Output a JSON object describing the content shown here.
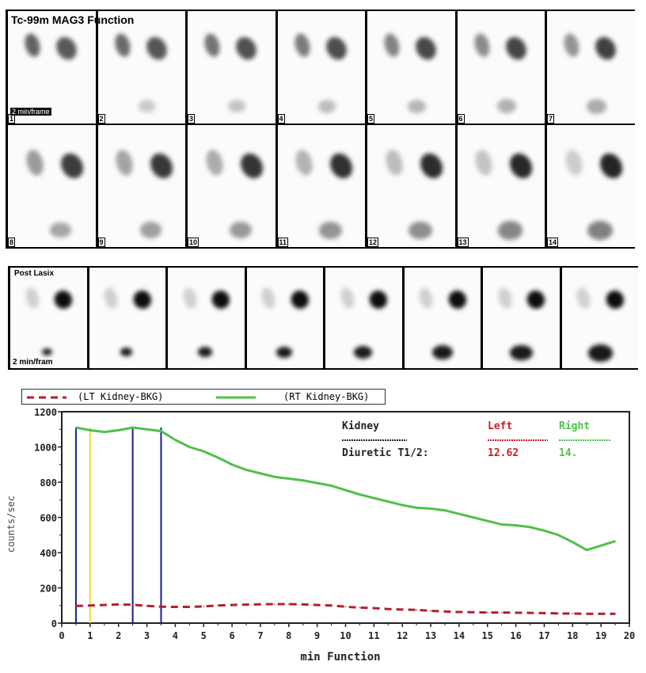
{
  "header": {
    "title": "Tc-99m MAG3 Function",
    "frame_rate": "2 min/frame"
  },
  "frames_row1": [
    "1",
    "2",
    "3",
    "4",
    "5",
    "6",
    "7"
  ],
  "frames_row2": [
    "8",
    "9",
    "10",
    "11",
    "12",
    "13",
    "14"
  ],
  "post_lasix": {
    "label": "Post Lasix",
    "frame_rate": "2 min/fram",
    "count": 8
  },
  "chart_data": {
    "type": "line",
    "xlabel": "min Function",
    "ylabel": "counts/sec",
    "xlim": [
      0,
      20
    ],
    "ylim": [
      0,
      1200
    ],
    "xticks": [
      "0",
      "1",
      "2",
      "3",
      "4",
      "5",
      "6",
      "7",
      "8",
      "9",
      "10",
      "11",
      "12",
      "13",
      "14",
      "15",
      "16",
      "17",
      "18",
      "19",
      "20"
    ],
    "yticks": [
      "0",
      "200",
      "400",
      "600",
      "800",
      "1000",
      "1200"
    ],
    "legend": {
      "placement": "top",
      "entries": [
        "(LT Kidney-BKG)",
        "(RT Kidney-BKG)"
      ]
    },
    "series": [
      {
        "name": "(LT Kidney-BKG)",
        "color": "#b22030",
        "style": "dashed",
        "x": [
          0.5,
          1,
          1.5,
          2,
          2.5,
          3,
          3.5,
          4,
          4.5,
          5,
          5.5,
          6,
          6.5,
          7,
          7.5,
          8,
          8.5,
          9,
          9.5,
          10,
          10.5,
          11,
          11.5,
          12,
          12.5,
          13,
          13.5,
          14,
          14.5,
          15,
          15.5,
          16,
          16.5,
          17,
          17.5,
          18,
          18.5,
          19,
          19.5
        ],
        "y": [
          97,
          100,
          103,
          106,
          104,
          98,
          93,
          92,
          92,
          95,
          100,
          103,
          105,
          107,
          108,
          108,
          106,
          103,
          100,
          93,
          88,
          85,
          80,
          77,
          75,
          70,
          66,
          63,
          62,
          60,
          60,
          59,
          58,
          57,
          55,
          54,
          53,
          53,
          53
        ]
      },
      {
        "name": "(RT Kidney-BKG)",
        "color": "#4fc04a",
        "style": "solid",
        "x": [
          0.5,
          1,
          1.5,
          2,
          2.5,
          3,
          3.5,
          4,
          4.5,
          5,
          5.5,
          6,
          6.5,
          7,
          7.5,
          8,
          8.5,
          9,
          9.5,
          10,
          10.5,
          11,
          11.5,
          12,
          12.5,
          13,
          13.5,
          14,
          14.5,
          15,
          15.5,
          16,
          16.5,
          17,
          17.5,
          18,
          18.5,
          19,
          19.5
        ],
        "y": [
          1110,
          1095,
          1085,
          1095,
          1110,
          1100,
          1090,
          1040,
          1000,
          975,
          940,
          900,
          870,
          850,
          830,
          820,
          810,
          795,
          780,
          755,
          730,
          710,
          690,
          670,
          655,
          650,
          640,
          620,
          600,
          580,
          560,
          555,
          545,
          525,
          500,
          460,
          415,
          440,
          465
        ]
      }
    ],
    "markers": [
      {
        "x": 0.5,
        "color": "#1a1f8c"
      },
      {
        "x": 1,
        "color": "#e8e040"
      },
      {
        "x": 2.5,
        "color": "#1a1f8c"
      },
      {
        "x": 3.5,
        "color": "#1a1f8c"
      }
    ],
    "annotation": {
      "kidney_label": "Kidney",
      "left_label": "Left",
      "right_label": "Right",
      "metric_label": "Diuretic T1/2:",
      "left_value": "12.62",
      "right_value": "14.",
      "left_color": "#c8202c",
      "right_color": "#4fc04a"
    }
  }
}
